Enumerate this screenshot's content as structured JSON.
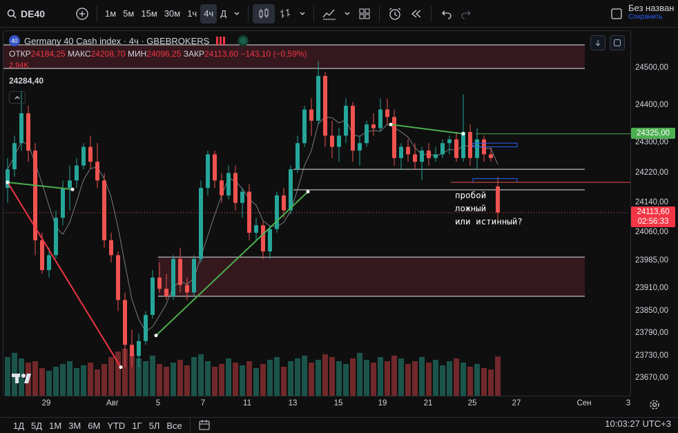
{
  "toolbar": {
    "symbol": "DE40",
    "intervals": [
      "1м",
      "5м",
      "15м",
      "30м",
      "1ч",
      "4ч",
      "Д"
    ],
    "active_interval": "4ч",
    "layout_name": "Без назван",
    "layout_status": "Сохранить"
  },
  "legend": {
    "title": "Germany 40 Cash index · 4ч · GBEBROKERS",
    "logo_text": "40",
    "open_label": "ОТКР",
    "open": "24184,25",
    "high_label": "МАКС",
    "high": "24208,70",
    "low_label": "МИН",
    "low": "24096,25",
    "close_label": "ЗАКР",
    "close": "24113,60",
    "change": "−143,10 (−0,59%)",
    "volume": "2,94K",
    "price": "24284,40"
  },
  "note": {
    "line1": "пробой",
    "line2": "ложный",
    "line3": "или истинный?"
  },
  "price_axis": {
    "ticks": [
      "24500,00",
      "24400,00",
      "24300,00",
      "24220,00",
      "24140,00",
      "24060,00",
      "23985,00",
      "23910,00",
      "23850,00",
      "23790,00",
      "23730,00",
      "23670,00"
    ],
    "tick_values": [
      24500,
      24400,
      24300,
      24220,
      24140,
      24060,
      23985,
      23910,
      23850,
      23790,
      23730,
      23670
    ],
    "green_badge": "24325,00",
    "green_value": 24325,
    "last_price": "24113,60",
    "last_value": 24113.6,
    "countdown": "02:56:33"
  },
  "time_axis": {
    "ticks": [
      "29",
      "Авг",
      "5",
      "7",
      "11",
      "13",
      "15",
      "19",
      "21",
      "25",
      "27",
      "Сен",
      "3"
    ]
  },
  "bottom": {
    "ranges": [
      "1Д",
      "5Д",
      "1М",
      "3М",
      "6М",
      "YTD",
      "1Г",
      "5Л",
      "Все"
    ],
    "clock": "10:03:27 UTC+3"
  },
  "colors": {
    "up": "#26a69a",
    "down": "#ef5350",
    "trend_green": "#4caf50",
    "trend_red": "#f23645",
    "zone": "#3b1a20",
    "accent": "#2962ff"
  },
  "chart_data": {
    "type": "candlestick",
    "interval": "4ч",
    "series": [
      {
        "name": "Germany 40 Cash index",
        "ohlc": [
          [
            24180,
            24260,
            24140,
            24230
          ],
          [
            24230,
            24320,
            24210,
            24300
          ],
          [
            24300,
            24440,
            24280,
            24380
          ],
          [
            24380,
            24400,
            24250,
            24280
          ],
          [
            24280,
            24300,
            24000,
            24040
          ],
          [
            24040,
            24060,
            23950,
            23960
          ],
          [
            23960,
            24020,
            23940,
            24000
          ],
          [
            24000,
            24120,
            23990,
            24100
          ],
          [
            24100,
            24200,
            24080,
            24180
          ],
          [
            24180,
            24240,
            24120,
            24200
          ],
          [
            24200,
            24260,
            24180,
            24240
          ],
          [
            24240,
            24300,
            24230,
            24290
          ],
          [
            24290,
            24320,
            24230,
            24250
          ],
          [
            24250,
            24300,
            24180,
            24200
          ],
          [
            24200,
            24220,
            24020,
            24040
          ],
          [
            24040,
            24060,
            23980,
            24000
          ],
          [
            24000,
            24010,
            23850,
            23880
          ],
          [
            23880,
            23900,
            23700,
            23760
          ],
          [
            23760,
            23800,
            23700,
            23730
          ],
          [
            23730,
            23790,
            23700,
            23770
          ],
          [
            23770,
            23850,
            23760,
            23840
          ],
          [
            23840,
            23960,
            23830,
            23940
          ],
          [
            23940,
            23980,
            23900,
            23910
          ],
          [
            23910,
            23950,
            23880,
            23890
          ],
          [
            23890,
            24000,
            23880,
            23990
          ],
          [
            23990,
            24020,
            23900,
            23920
          ],
          [
            23920,
            23940,
            23880,
            23900
          ],
          [
            23900,
            24000,
            23890,
            23990
          ],
          [
            23990,
            24200,
            23980,
            24180
          ],
          [
            24180,
            24280,
            24160,
            24270
          ],
          [
            24270,
            24280,
            24180,
            24200
          ],
          [
            24200,
            24220,
            24140,
            24160
          ],
          [
            24160,
            24240,
            24150,
            24220
          ],
          [
            24220,
            24240,
            24120,
            24140
          ],
          [
            24140,
            24180,
            24100,
            24170
          ],
          [
            24170,
            24190,
            24040,
            24060
          ],
          [
            24060,
            24100,
            24040,
            24080
          ],
          [
            24080,
            24090,
            23990,
            24010
          ],
          [
            24010,
            24080,
            23990,
            24070
          ],
          [
            24070,
            24170,
            24060,
            24160
          ],
          [
            24160,
            24180,
            24100,
            24120
          ],
          [
            24120,
            24240,
            24110,
            24230
          ],
          [
            24230,
            24320,
            24220,
            24300
          ],
          [
            24300,
            24400,
            24290,
            24390
          ],
          [
            24390,
            24420,
            24320,
            24360
          ],
          [
            24360,
            24520,
            24350,
            24480
          ],
          [
            24480,
            24490,
            24290,
            24320
          ],
          [
            24320,
            24360,
            24260,
            24290
          ],
          [
            24290,
            24340,
            24250,
            24320
          ],
          [
            24320,
            24420,
            24300,
            24400
          ],
          [
            24400,
            24410,
            24250,
            24280
          ],
          [
            24280,
            24320,
            24240,
            24300
          ],
          [
            24300,
            24360,
            24290,
            24350
          ],
          [
            24350,
            24380,
            24320,
            24340
          ],
          [
            24340,
            24420,
            24330,
            24390
          ],
          [
            24390,
            24420,
            24350,
            24370
          ],
          [
            24370,
            24390,
            24240,
            24260
          ],
          [
            24260,
            24300,
            24230,
            24290
          ],
          [
            24290,
            24310,
            24250,
            24270
          ],
          [
            24270,
            24300,
            24230,
            24250
          ],
          [
            24250,
            24290,
            24200,
            24280
          ],
          [
            24280,
            24300,
            24240,
            24260
          ],
          [
            24260,
            24290,
            24250,
            24270
          ],
          [
            24270,
            24310,
            24260,
            24300
          ],
          [
            24300,
            24320,
            24270,
            24310
          ],
          [
            24310,
            24330,
            24250,
            24260
          ],
          [
            24260,
            24430,
            24250,
            24330
          ],
          [
            24330,
            24350,
            24240,
            24260
          ],
          [
            24260,
            24340,
            24230,
            24310
          ],
          [
            24310,
            24320,
            24250,
            24270
          ],
          [
            24270,
            24290,
            24250,
            24260
          ],
          [
            24184,
            24209,
            24096,
            24114
          ]
        ]
      },
      {
        "name": "Volume",
        "values": [
          2.9,
          3.2,
          2.8,
          2.5,
          2.6,
          2.1,
          1.9,
          2.2,
          2.4,
          2.6,
          2.1,
          2.3,
          2.5,
          2.0,
          2.4,
          2.9,
          3.3,
          3.5,
          3.1,
          2.8,
          2.6,
          3.0,
          2.4,
          2.2,
          2.5,
          2.7,
          2.3,
          2.9,
          3.1,
          2.6,
          2.2,
          2.4,
          2.8,
          2.5,
          2.3,
          2.6,
          2.1,
          2.4,
          2.7,
          2.9,
          2.2,
          2.6,
          2.8,
          3.0,
          2.5,
          2.7,
          3.1,
          2.9,
          2.6,
          2.4,
          2.8,
          3.2,
          2.7,
          2.5,
          2.9,
          2.6,
          3.0,
          2.8,
          2.4,
          2.6,
          2.9,
          2.5,
          2.7,
          2.3,
          2.6,
          2.8,
          2.5,
          2.2,
          2.4,
          2.1,
          2.0,
          2.94
        ]
      }
    ],
    "horizontal_levels": [
      24563,
      24500,
      24230,
      24175,
      23995,
      23890
    ],
    "zones": [
      [
        24500,
        24563
      ],
      [
        23890,
        23995
      ]
    ],
    "ylim": [
      23620,
      24600
    ]
  }
}
